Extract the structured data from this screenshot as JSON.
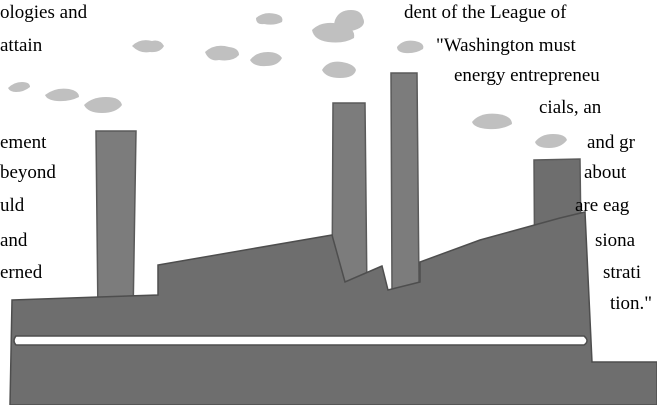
{
  "text_left": [
    "ologies and",
    "attain",
    "ement",
    "beyond",
    "uld",
    "and",
    "erned"
  ],
  "text_right": [
    "dent of the League of",
    "\"Washington must",
    "energy entrepreneu",
    "cials, an",
    "and gr",
    "about",
    "are eag",
    "siona",
    "strati",
    "tion.\""
  ],
  "colors": {
    "factory_dark": "#6e6e6e",
    "chimney_light": "#7c7c7c",
    "smoke": "#c0c0c0",
    "outline": "#5a5a5a",
    "stripe": "#ffffff"
  },
  "icons": [
    "factory-illustration",
    "smoke-puff"
  ]
}
